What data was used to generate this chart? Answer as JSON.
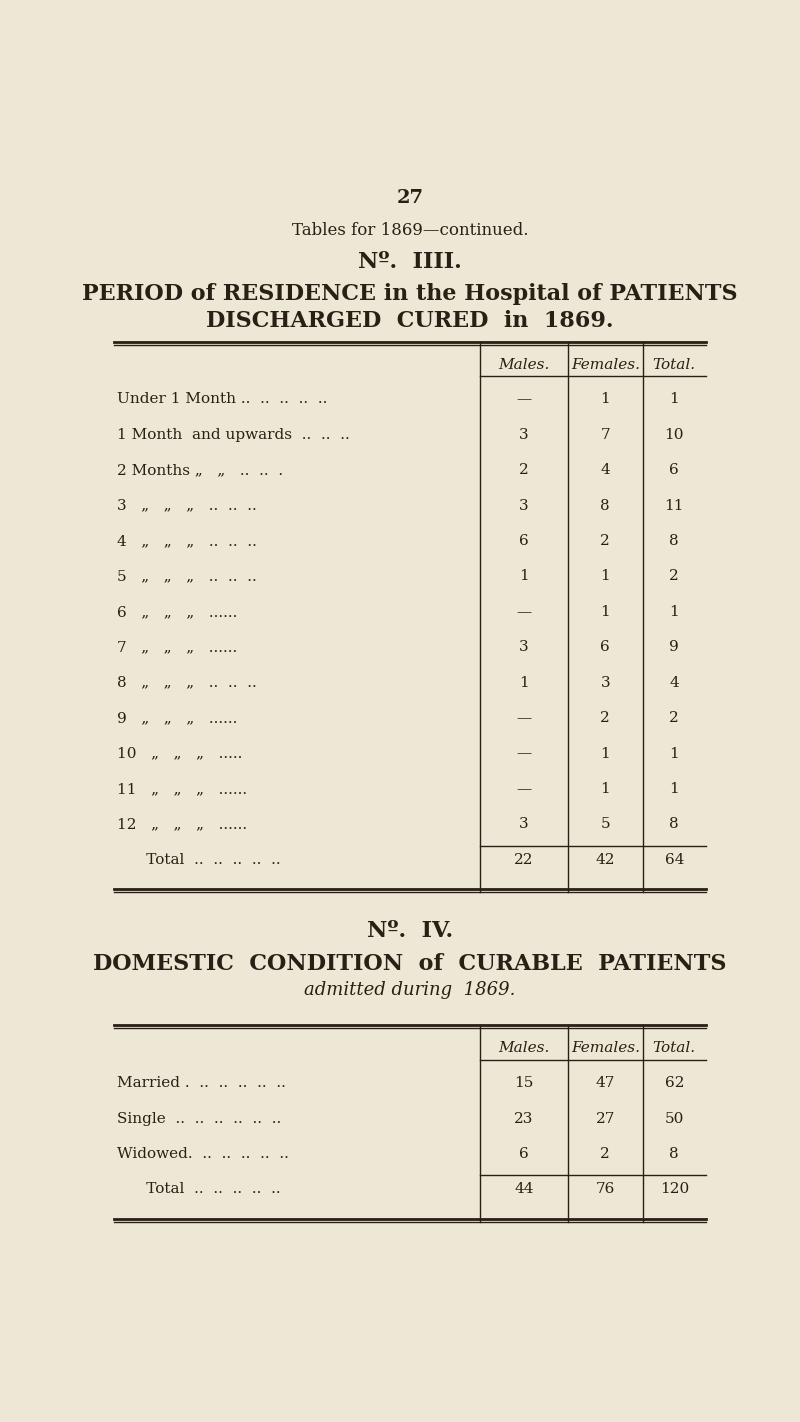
{
  "bg_color": "#ede8d5",
  "text_color": "#2a1f14",
  "page_number": "27",
  "header": "Tables for 1869—continued.",
  "no3_label": "Nº.  IIII.",
  "title1_line1": "PERIOD of RESIDENCE in the Hospital of PATIENTS",
  "title1_line2": "DISCHARGED  CURED  in  1869.",
  "table1_col_headers": [
    "Males.",
    "Females.",
    "Total."
  ],
  "table1_rows": [
    [
      "Under 1 Month ..  ..  ..  ..  ..",
      "—",
      "1",
      "1"
    ],
    [
      "1 Month  and upwards  ..  ..  ..",
      "3",
      "7",
      "10"
    ],
    [
      "2 Months „   „   ..  ..  .",
      "2",
      "4",
      "6"
    ],
    [
      "3   „   „   „   ..  ..  ..",
      "3",
      "8",
      "11"
    ],
    [
      "4   „   „   „   ..  ..  ..",
      "6",
      "2",
      "8"
    ],
    [
      "5   „   „   „   ..  ..  ..",
      "1",
      "1",
      "2"
    ],
    [
      "6   „   „   „   ......",
      "—",
      "1",
      "1"
    ],
    [
      "7   „   „   „   ......",
      "3",
      "6",
      "9"
    ],
    [
      "8   „   „   „   ..  ..  ..",
      "1",
      "3",
      "4"
    ],
    [
      "9   „   „   „   ......",
      "—",
      "2",
      "2"
    ],
    [
      "10   „   „   „   .....",
      "—",
      "1",
      "1"
    ],
    [
      "11   „   „   „   ......",
      "—",
      "1",
      "1"
    ],
    [
      "12   „   „   „   ......",
      "3",
      "5",
      "8"
    ],
    [
      "      Total  ..  ..  ..  ..  ..",
      "22",
      "42",
      "64"
    ]
  ],
  "no4_label": "Nº.  IV.",
  "title2_line1": "DOMESTIC  CONDITION  of  CURABLE  PATIENTS",
  "title2_line2": "admitted during  1869.",
  "table2_col_headers": [
    "Males.",
    "Females.",
    "Total."
  ],
  "table2_rows": [
    [
      "Married .  ..  ..  ..  ..  ..",
      "15",
      "47",
      "62"
    ],
    [
      "Single  ..  ..  ..  ..  ..  ..",
      "23",
      "27",
      "50"
    ],
    [
      "Widowed.  ..  ..  ..  ..  ..",
      "6",
      "2",
      "8"
    ],
    [
      "      Total  ..  ..  ..  ..  ..",
      "44",
      "76",
      "120"
    ]
  ]
}
